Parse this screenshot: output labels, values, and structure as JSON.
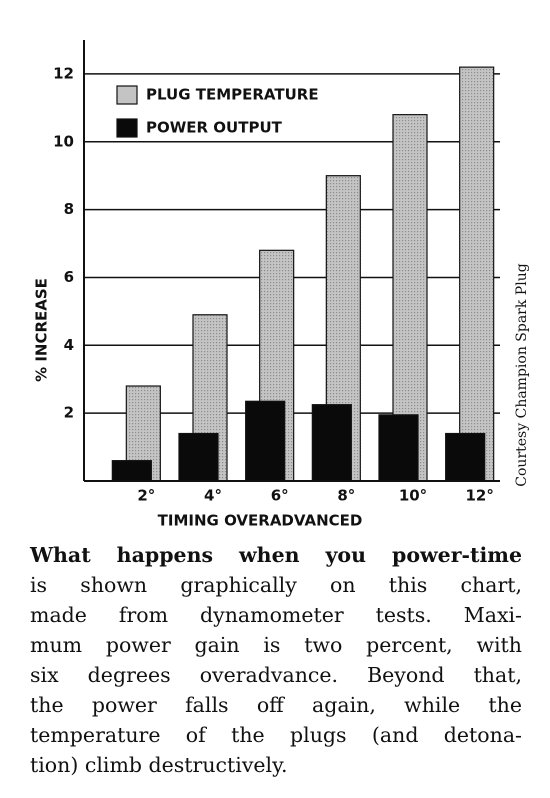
{
  "chart_data": {
    "type": "bar",
    "categories": [
      "2°",
      "4°",
      "6°",
      "8°",
      "10°",
      "12°"
    ],
    "series": [
      {
        "name": "PLUG TEMPERATURE",
        "color": "#c4c4c4",
        "values": [
          2.8,
          4.9,
          6.8,
          9.0,
          10.8,
          12.2
        ]
      },
      {
        "name": "POWER OUTPUT",
        "color": "#0a0a0a",
        "values": [
          0.6,
          1.4,
          2.35,
          2.25,
          1.95,
          1.4
        ]
      }
    ],
    "xlabel": "TIMING OVERADVANCED",
    "ylabel": "% INCREASE",
    "ylim": [
      0,
      13
    ],
    "yticks": [
      2,
      4,
      6,
      8,
      10,
      12
    ],
    "grid": true,
    "legend": "upper left",
    "credit": "Courtesy Champion Spark Plug"
  },
  "caption": {
    "lines": [
      "What happens when you power-time",
      "is shown graphically on this chart,",
      "made from dynamometer tests. Maxi-",
      "mum power gain is two percent, with",
      "six degrees overadvance. Beyond that,",
      "the power falls off again, while the",
      "temperature of the plugs (and detona-",
      "tion) climb destructively."
    ]
  }
}
